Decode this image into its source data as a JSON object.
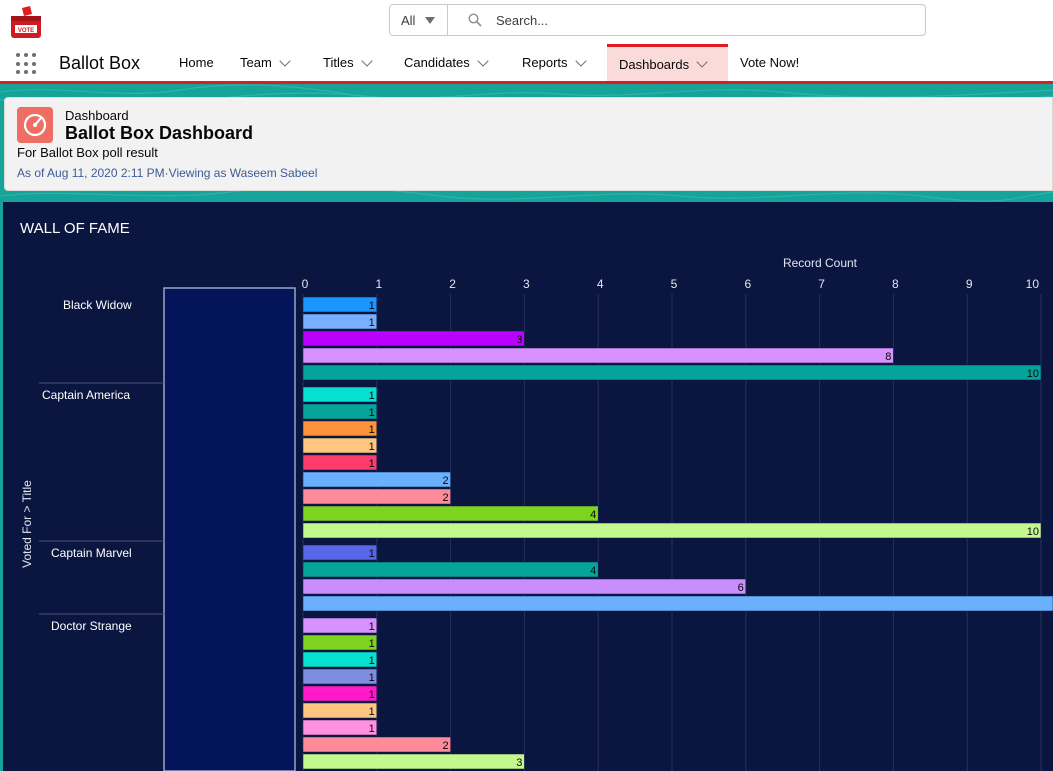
{
  "header": {
    "logo_text": "VOTE",
    "search": {
      "scope": "All",
      "placeholder": "Search..."
    }
  },
  "nav": {
    "app_name": "Ballot Box",
    "items": [
      {
        "label": "Home",
        "dropdown": false,
        "active": false
      },
      {
        "label": "Team",
        "dropdown": true,
        "active": false
      },
      {
        "label": "Titles",
        "dropdown": true,
        "active": false
      },
      {
        "label": "Candidates",
        "dropdown": true,
        "active": false
      },
      {
        "label": "Reports",
        "dropdown": true,
        "active": false
      },
      {
        "label": "Dashboards",
        "dropdown": true,
        "active": true
      },
      {
        "label": "Vote Now!",
        "dropdown": false,
        "active": false
      }
    ]
  },
  "dashboard": {
    "type_label": "Dashboard",
    "title": "Ballot Box Dashboard",
    "description": "For Ballot Box poll result",
    "meta": "As of Aug 11, 2020 2:11 PM·Viewing as Waseem Sabeel"
  },
  "colors": {
    "accent": "#e21a22",
    "panel_bg": "#0b1640",
    "teal_bg": "#16a399",
    "icon_bg": "#ef6e64"
  },
  "chart_data": {
    "type": "bar",
    "orientation": "horizontal",
    "title": "WALL OF FAME",
    "xlabel": "Record Count",
    "ylabel": "Voted For  >  Title",
    "xlim": [
      0,
      10
    ],
    "x_ticks": [
      "0",
      "1",
      "2",
      "3",
      "4",
      "5",
      "6",
      "7",
      "8",
      "9",
      "10"
    ],
    "grid": true,
    "groups": [
      {
        "name": "Black Widow",
        "bars": [
          {
            "value": 1,
            "color": "#1b96ff"
          },
          {
            "value": 1,
            "color": "#78b0fd"
          },
          {
            "value": 3,
            "color": "#ba01ff"
          },
          {
            "value": 8,
            "color": "#d892fe"
          },
          {
            "value": 10,
            "color": "#04a39b"
          }
        ]
      },
      {
        "name": "Captain America",
        "bars": [
          {
            "value": 1,
            "color": "#06e1d2"
          },
          {
            "value": 1,
            "color": "#06a59a"
          },
          {
            "value": 1,
            "color": "#fe9339"
          },
          {
            "value": 1,
            "color": "#ffc682"
          },
          {
            "value": 1,
            "color": "#ff3d6d"
          },
          {
            "value": 2,
            "color": "#6ab0fd"
          },
          {
            "value": 2,
            "color": "#ff8b9a"
          },
          {
            "value": 4,
            "color": "#7ed321"
          },
          {
            "value": 10,
            "color": "#c5f78f"
          }
        ]
      },
      {
        "name": "Captain Marvel",
        "bars": [
          {
            "value": 1,
            "color": "#5867e8"
          },
          {
            "value": 4,
            "color": "#06a59a"
          },
          {
            "value": 6,
            "color": "#c98dfe"
          },
          {
            "value": 10.2,
            "color": "#6ab0fd",
            "label": ""
          }
        ]
      },
      {
        "name": "Doctor Strange",
        "bars": [
          {
            "value": 1,
            "color": "#d892fe"
          },
          {
            "value": 1,
            "color": "#7ed321"
          },
          {
            "value": 1,
            "color": "#06e1d2"
          },
          {
            "value": 1,
            "color": "#7f8de1"
          },
          {
            "value": 1,
            "color": "#ff19c8"
          },
          {
            "value": 1,
            "color": "#ffc682"
          },
          {
            "value": 1,
            "color": "#ff91e0"
          },
          {
            "value": 2,
            "color": "#ff8b9a"
          },
          {
            "value": 3,
            "color": "#c5f78f"
          }
        ]
      }
    ]
  }
}
